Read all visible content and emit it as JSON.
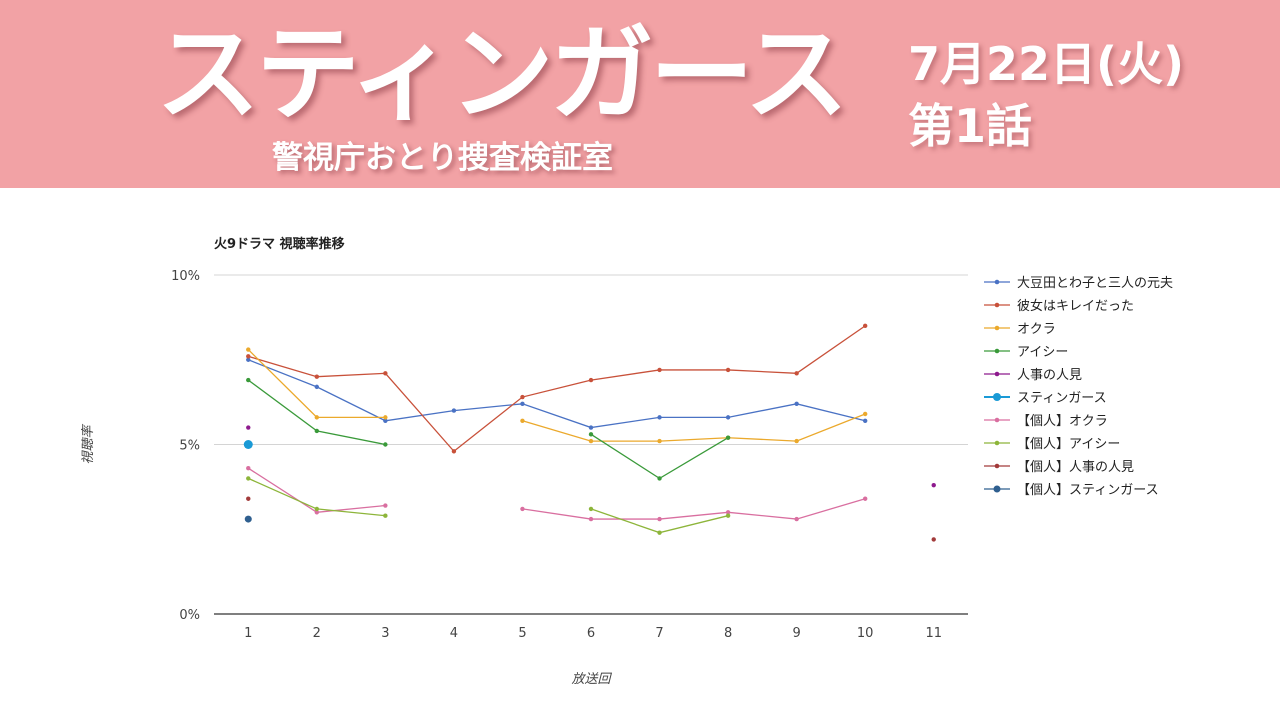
{
  "header": {
    "title": "スティンガース",
    "subtitle": "警視庁おとり捜査検証室",
    "air_date": "7月22日(火)",
    "episode": "第1話",
    "background_color": "#f2a2a5"
  },
  "chart_data": {
    "type": "line",
    "title": "火9ドラマ 視聴率推移",
    "xlabel": "放送回",
    "ylabel": "視聴率",
    "categories": [
      "1",
      "2",
      "3",
      "4",
      "5",
      "6",
      "7",
      "8",
      "9",
      "10",
      "11"
    ],
    "yticks": [
      "0%",
      "5%",
      "10%"
    ],
    "ylim": [
      0,
      10
    ],
    "grid": true,
    "legend": "right",
    "series": [
      {
        "name": "大豆田とわ子と三人の元夫",
        "color": "#4a72c4",
        "values": [
          7.5,
          6.7,
          5.7,
          6.0,
          6.2,
          5.5,
          5.8,
          5.8,
          6.2,
          5.7,
          null
        ]
      },
      {
        "name": "彼女はキレイだった",
        "color": "#c8513a",
        "values": [
          7.6,
          7.0,
          7.1,
          4.8,
          6.4,
          6.9,
          7.2,
          7.2,
          7.1,
          8.5,
          null
        ]
      },
      {
        "name": "オクラ",
        "color": "#eba92c",
        "values": [
          7.8,
          5.8,
          5.8,
          null,
          5.7,
          5.1,
          5.1,
          5.2,
          5.1,
          5.9,
          null
        ]
      },
      {
        "name": "アイシー",
        "color": "#3a9a3a",
        "values": [
          6.9,
          5.4,
          5.0,
          null,
          null,
          5.3,
          4.0,
          5.2,
          null,
          null,
          null
        ]
      },
      {
        "name": "人事の人見",
        "color": "#8e1a8e",
        "values": [
          5.5,
          null,
          null,
          null,
          null,
          null,
          null,
          null,
          null,
          null,
          3.8
        ]
      },
      {
        "name": "スティンガース",
        "color": "#1a9ad6",
        "values": [
          5.0,
          null,
          null,
          null,
          null,
          null,
          null,
          null,
          null,
          null,
          null
        ]
      },
      {
        "name": "【個人】オクラ",
        "color": "#d96fa0",
        "values": [
          4.3,
          3.0,
          3.2,
          null,
          3.1,
          2.8,
          2.8,
          3.0,
          2.8,
          3.4,
          null
        ]
      },
      {
        "name": "【個人】アイシー",
        "color": "#8db53a",
        "values": [
          4.0,
          3.1,
          2.9,
          null,
          null,
          3.1,
          2.4,
          2.9,
          null,
          null,
          null
        ]
      },
      {
        "name": "【個人】人事の人見",
        "color": "#a23a3a",
        "values": [
          3.4,
          null,
          null,
          null,
          null,
          null,
          null,
          null,
          null,
          null,
          2.2
        ]
      },
      {
        "name": "【個人】スティンガース",
        "color": "#2f5f8f",
        "values": [
          2.8,
          null,
          null,
          null,
          null,
          null,
          null,
          null,
          null,
          null,
          null
        ]
      }
    ]
  }
}
